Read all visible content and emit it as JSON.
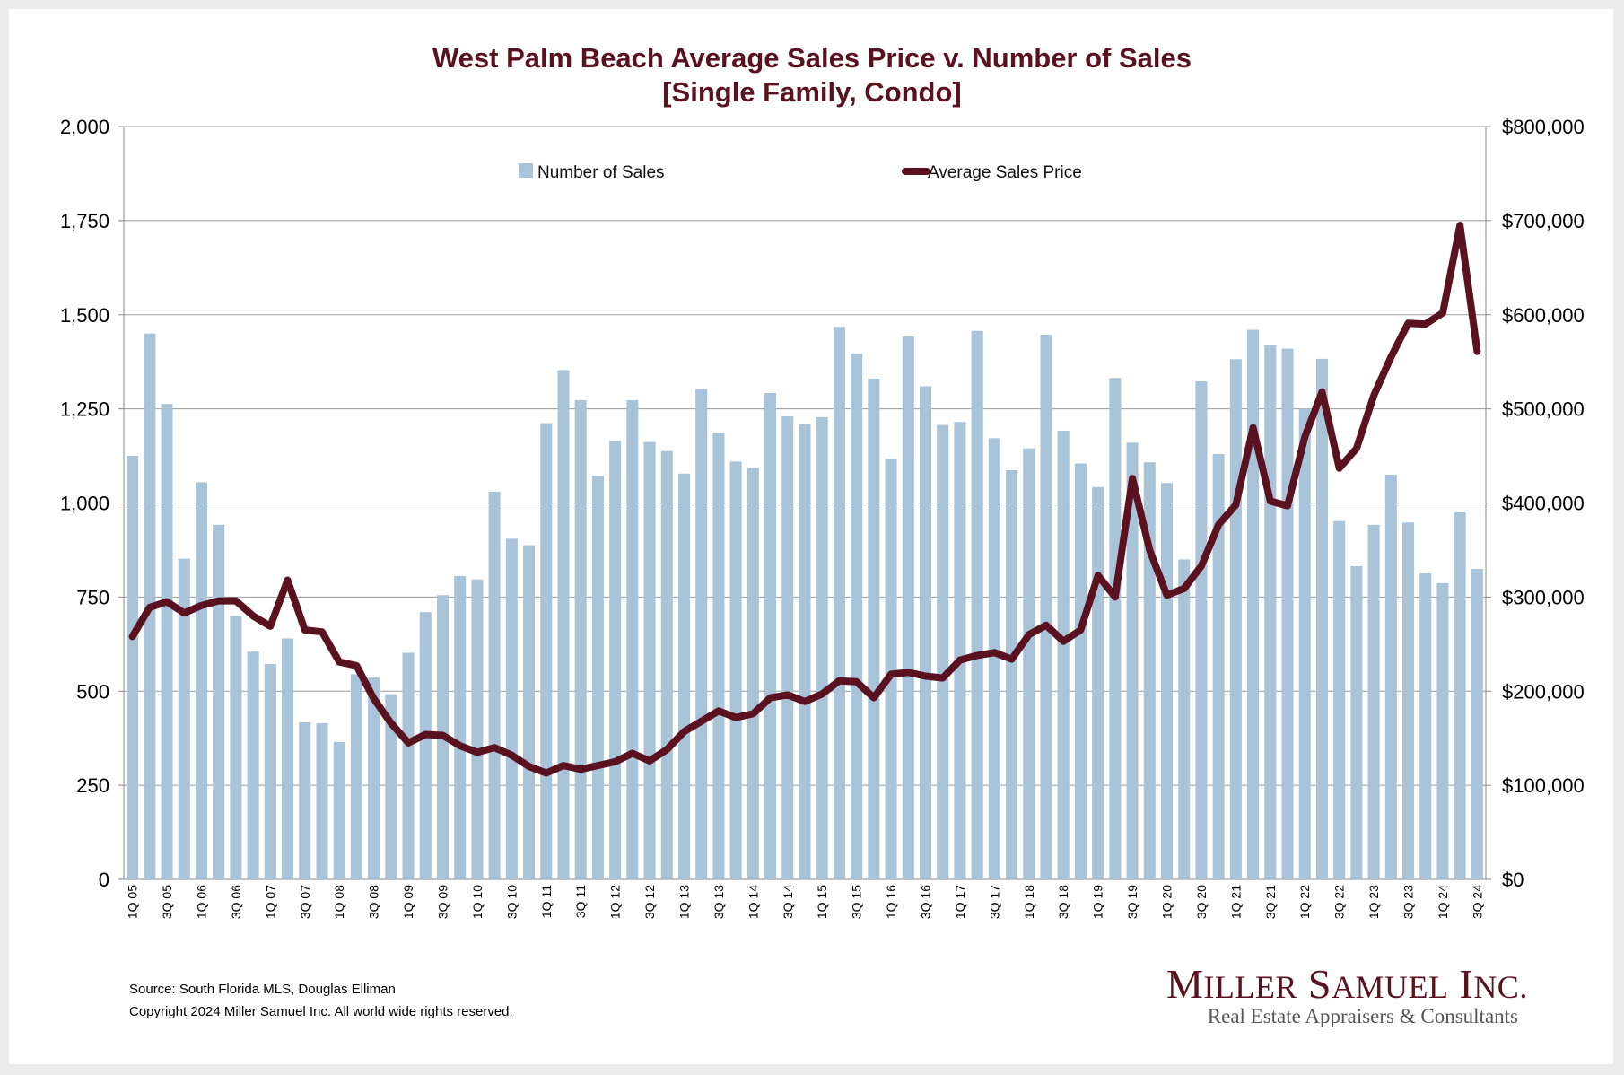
{
  "chart_data": {
    "type": "bar+line",
    "title": "West Palm Beach Average Sales Price v. Number of Sales",
    "subtitle": "[Single Family, Condo]",
    "categories": [
      "1Q 05",
      "2Q 05",
      "3Q 05",
      "4Q 05",
      "1Q 06",
      "2Q 06",
      "3Q 06",
      "4Q 06",
      "1Q 07",
      "2Q 07",
      "3Q 07",
      "4Q 07",
      "1Q 08",
      "2Q 08",
      "3Q 08",
      "4Q 08",
      "1Q 09",
      "2Q 09",
      "3Q 09",
      "4Q 09",
      "1Q 10",
      "2Q 10",
      "3Q 10",
      "4Q 10",
      "1Q 11",
      "2Q 11",
      "3Q 11",
      "4Q 11",
      "1Q 12",
      "2Q 12",
      "3Q 12",
      "4Q 12",
      "1Q 13",
      "2Q 13",
      "3Q 13",
      "4Q 13",
      "1Q 14",
      "2Q 14",
      "3Q 14",
      "4Q 14",
      "1Q 15",
      "2Q 15",
      "3Q 15",
      "4Q 15",
      "1Q 16",
      "2Q 16",
      "3Q 16",
      "4Q 16",
      "1Q 17",
      "2Q 17",
      "3Q 17",
      "4Q 17",
      "1Q 18",
      "2Q 18",
      "3Q 18",
      "4Q 18",
      "1Q 19",
      "2Q 19",
      "3Q 19",
      "4Q 19",
      "1Q 20",
      "2Q 20",
      "3Q 20",
      "4Q 20",
      "1Q 21",
      "2Q 21",
      "3Q 21",
      "4Q 21",
      "1Q 22",
      "2Q 22",
      "3Q 22",
      "4Q 22",
      "1Q 23",
      "2Q 23",
      "3Q 23",
      "4Q 23",
      "1Q 24",
      "2Q 24",
      "3Q 24"
    ],
    "tick_labels_shown": [
      "1Q 05",
      "3Q 05",
      "1Q 06",
      "3Q 06",
      "1Q 07",
      "3Q 07",
      "1Q 08",
      "3Q 08",
      "1Q 09",
      "3Q 09",
      "1Q 10",
      "3Q 10",
      "1Q 11",
      "3Q 11",
      "1Q 12",
      "3Q 12",
      "1Q 13",
      "3Q 13",
      "1Q 14",
      "3Q 14",
      "1Q 15",
      "3Q 15",
      "1Q 16",
      "3Q 16",
      "1Q 17",
      "3Q 17",
      "1Q 18",
      "3Q 18",
      "1Q 19",
      "3Q 19",
      "1Q 20",
      "3Q 20",
      "1Q 21",
      "3Q 21",
      "1Q 22",
      "3Q 22",
      "1Q 23",
      "3Q 23",
      "1Q 24",
      "3Q 24"
    ],
    "series": [
      {
        "name": "Number of Sales",
        "type": "bar",
        "axis": "left",
        "color": "#a9c4d9",
        "values": [
          1125,
          1450,
          1263,
          852,
          1055,
          942,
          700,
          605,
          572,
          640,
          417,
          415,
          365,
          545,
          536,
          492,
          602,
          710,
          755,
          806,
          797,
          1030,
          905,
          888,
          1212,
          1353,
          1273,
          1072,
          1165,
          1273,
          1162,
          1138,
          1078,
          1303,
          1187,
          1110,
          1093,
          1292,
          1230,
          1210,
          1228,
          1468,
          1397,
          1330,
          1117,
          1442,
          1310,
          1207,
          1215,
          1457,
          1172,
          1087,
          1145,
          1447,
          1192,
          1105,
          1042,
          1332,
          1160,
          1108,
          1053,
          850,
          1323,
          1130,
          1382,
          1460,
          1420,
          1410,
          1250,
          1383,
          952,
          832,
          942,
          1075,
          948,
          813,
          787,
          975,
          825
        ]
      },
      {
        "name": "Average Sales Price",
        "type": "line",
        "axis": "right",
        "color": "#5a1220",
        "values": [
          258000,
          289000,
          295000,
          283000,
          291000,
          296000,
          296000,
          280000,
          269000,
          318000,
          265000,
          263000,
          231000,
          227000,
          192000,
          166000,
          145000,
          154000,
          153000,
          142000,
          135000,
          140000,
          132000,
          120000,
          113000,
          121000,
          117000,
          121000,
          125000,
          134000,
          126000,
          138000,
          157000,
          168000,
          179000,
          172000,
          176000,
          193000,
          196000,
          189000,
          197000,
          211000,
          210000,
          193000,
          218000,
          220000,
          216000,
          214000,
          233000,
          238000,
          241000,
          234000,
          260000,
          270000,
          253000,
          265000,
          323000,
          300000,
          426000,
          350000,
          302000,
          309000,
          333000,
          377000,
          398000,
          480000,
          402000,
          397000,
          470000,
          518000,
          437000,
          458000,
          514000,
          555000,
          591000,
          590000,
          602000,
          695000,
          561000
        ]
      }
    ],
    "y_left": {
      "min": 0,
      "max": 2000,
      "ticks": [
        "0",
        "250",
        "500",
        "750",
        "1,000",
        "1,250",
        "1,500",
        "1,750",
        "2,000"
      ]
    },
    "y_right": {
      "min": 0,
      "max": 800000,
      "ticks": [
        "$0",
        "$100,000",
        "$200,000",
        "$300,000",
        "$400,000",
        "$500,000",
        "$600,000",
        "$700,000",
        "$800,000"
      ]
    },
    "grid": "horizontal",
    "legend_position": "top-center"
  },
  "footer": {
    "source": "Source: South Florida MLS, Douglas Elliman",
    "copyright": "Copyright 2024 Miller Samuel Inc.  All world wide rights reserved."
  },
  "logo": {
    "name": "Miller Samuel Inc.",
    "tagline": "Real Estate Appraisers & Consultants",
    "color": "#5a1220"
  }
}
